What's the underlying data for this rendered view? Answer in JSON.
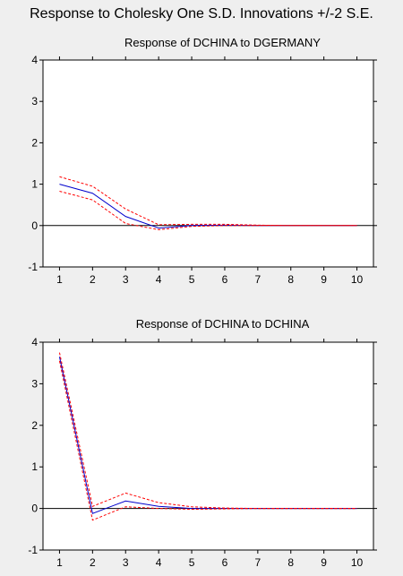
{
  "page_title": "Response to Cholesky One S.D. Innovations +/-2 S.E.",
  "colors": {
    "response": "#0000cc",
    "bands": "#ff0000",
    "zero_line": "#000000",
    "plot_background": "#ffffff",
    "page_background": "#efefef"
  },
  "chart_data": [
    {
      "type": "line",
      "title": "Response of DCHINA to DGERMANY",
      "xlabel": "",
      "ylabel": "",
      "x": [
        1,
        2,
        3,
        4,
        5,
        6,
        7,
        8,
        9,
        10
      ],
      "xlim": [
        0.5,
        10.5
      ],
      "ylim": [
        -1,
        4
      ],
      "y_ticks": [
        -1,
        0,
        1,
        2,
        3,
        4
      ],
      "grid": false,
      "series": [
        {
          "role": "response",
          "style": "solid",
          "values": [
            1.0,
            0.78,
            0.22,
            -0.06,
            0.0,
            0.01,
            0.0,
            0.0,
            0.0,
            0.0
          ]
        },
        {
          "role": "upper",
          "style": "dashed",
          "values": [
            1.18,
            0.95,
            0.4,
            0.02,
            0.03,
            0.03,
            0.01,
            0.0,
            0.0,
            0.0
          ]
        },
        {
          "role": "lower",
          "style": "dashed",
          "values": [
            0.83,
            0.62,
            0.05,
            -0.1,
            -0.02,
            0.0,
            0.0,
            0.0,
            0.0,
            0.0
          ]
        }
      ]
    },
    {
      "type": "line",
      "title": "Response of DCHINA to DCHINA",
      "xlabel": "",
      "ylabel": "",
      "x": [
        1,
        2,
        3,
        4,
        5,
        6,
        7,
        8,
        9,
        10
      ],
      "xlim": [
        0.5,
        10.5
      ],
      "ylim": [
        -1,
        4
      ],
      "y_ticks": [
        -1,
        0,
        1,
        2,
        3,
        4
      ],
      "grid": false,
      "series": [
        {
          "role": "response",
          "style": "solid",
          "values": [
            3.65,
            -0.12,
            0.18,
            0.05,
            0.0,
            0.0,
            0.0,
            0.0,
            0.0,
            0.0
          ]
        },
        {
          "role": "upper",
          "style": "dashed",
          "values": [
            3.75,
            0.05,
            0.37,
            0.14,
            0.04,
            0.01,
            0.0,
            0.0,
            0.0,
            0.0
          ]
        },
        {
          "role": "lower",
          "style": "dashed",
          "values": [
            3.55,
            -0.28,
            0.04,
            0.0,
            -0.02,
            -0.01,
            0.0,
            0.0,
            0.0,
            0.0
          ]
        }
      ]
    }
  ]
}
